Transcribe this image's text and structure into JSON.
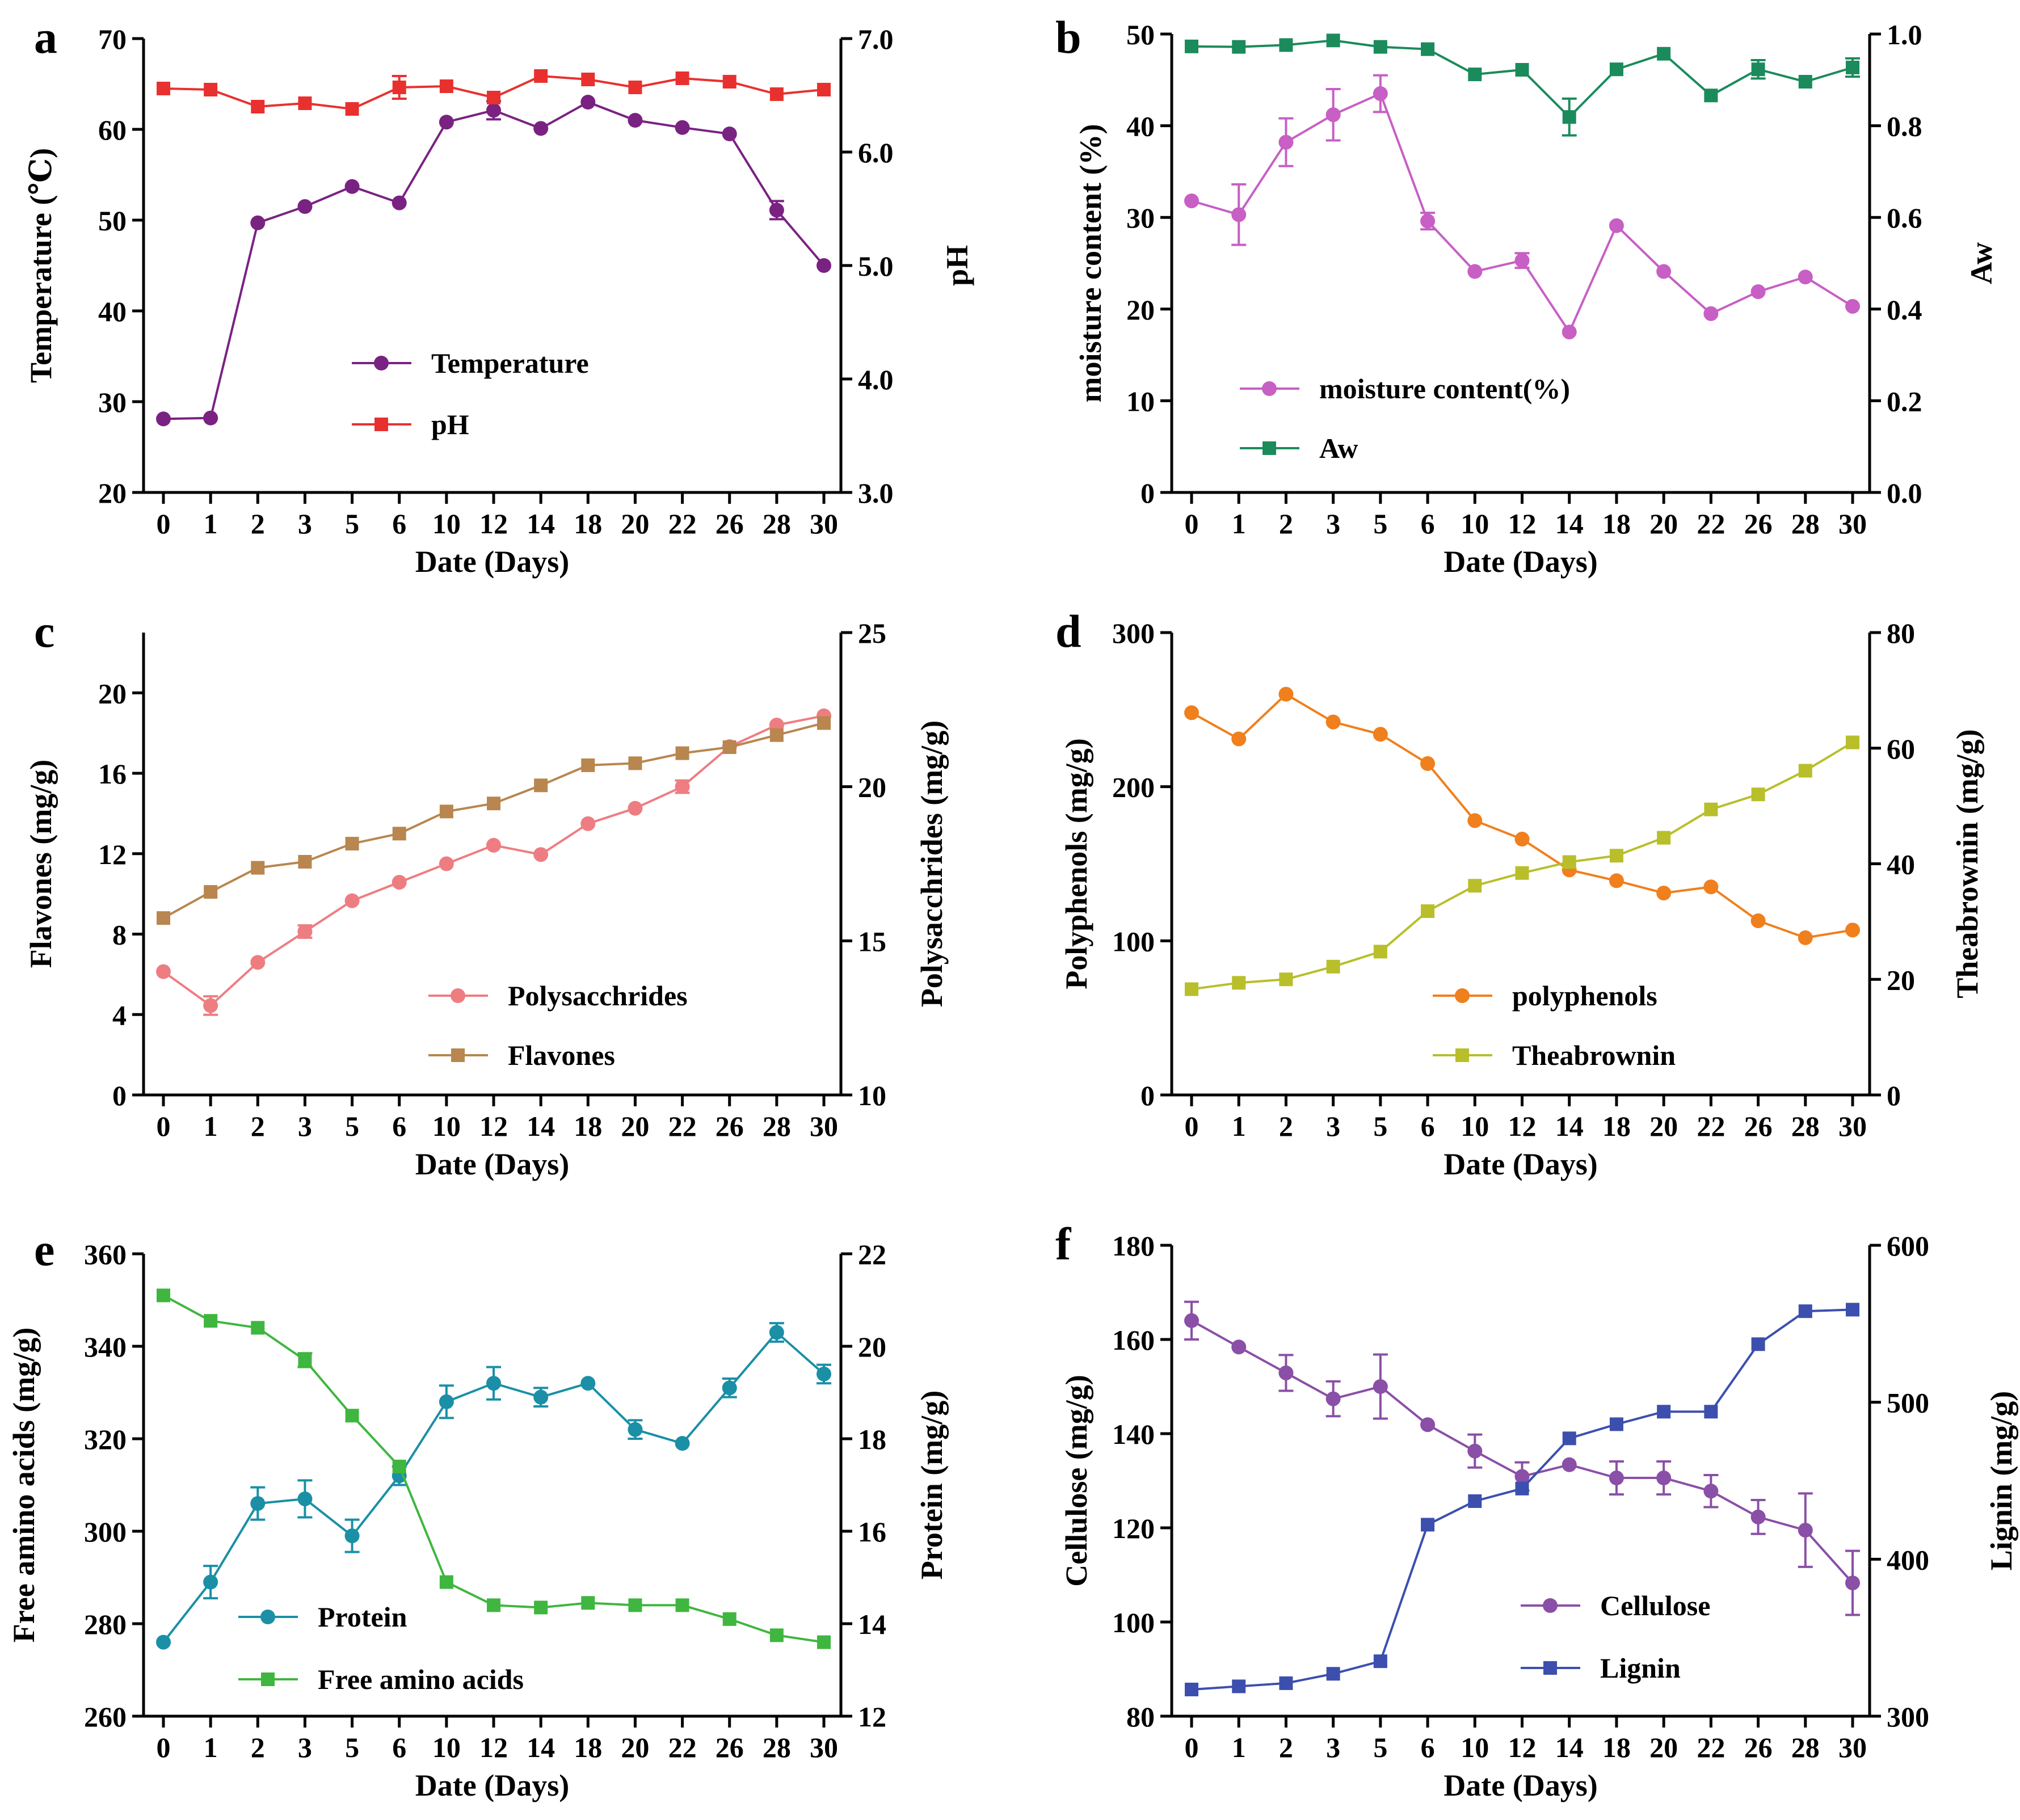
{
  "figure": {
    "xlabel": "Date (Days)",
    "days": [
      "0",
      "1",
      "2",
      "3",
      "5",
      "6",
      "10",
      "12",
      "14",
      "18",
      "20",
      "22",
      "26",
      "28",
      "30"
    ]
  },
  "chart_data": [
    {
      "panel": "a",
      "type": "line",
      "ylabel_left": "Temperature (℃)",
      "ylabel_right": "pH",
      "yleft_range": [
        20,
        70
      ],
      "yleft_ticks": [
        "20",
        "30",
        "40",
        "50",
        "60",
        "70"
      ],
      "yright_range": [
        3.0,
        7.0
      ],
      "yright_ticks": [
        "3.0",
        "4.0",
        "5.0",
        "6.0",
        "7.0"
      ],
      "series": [
        {
          "name": "Temperature",
          "axis": "left",
          "color": "#7a2282",
          "marker": "circle",
          "values": [
            28.1,
            28.2,
            49.7,
            51.5,
            53.7,
            51.9,
            60.8,
            62.1,
            60.1,
            63.0,
            61.0,
            60.2,
            59.5,
            51.1,
            45.0
          ],
          "errors": [
            0,
            0,
            0,
            0,
            0,
            0,
            0,
            1.0,
            0,
            0,
            0,
            0,
            0,
            1.0,
            0
          ]
        },
        {
          "name": "pH",
          "axis": "right",
          "color": "#e8312f",
          "marker": "square",
          "values": [
            6.56,
            6.55,
            6.4,
            6.43,
            6.38,
            6.57,
            6.58,
            6.48,
            6.67,
            6.64,
            6.57,
            6.65,
            6.62,
            6.51,
            6.55
          ],
          "errors": [
            0,
            0,
            0,
            0,
            0,
            0.1,
            0,
            0,
            0,
            0,
            0,
            0,
            0,
            0,
            0
          ]
        }
      ]
    },
    {
      "panel": "b",
      "type": "line",
      "ylabel_left": "moisture content (%)",
      "ylabel_right": "Aw",
      "yleft_range": [
        0,
        50
      ],
      "yleft_ticks": [
        "0",
        "10",
        "20",
        "30",
        "40",
        "50"
      ],
      "yright_range": [
        0.0,
        1.0
      ],
      "yright_ticks": [
        "0.0",
        "0.2",
        "0.4",
        "0.6",
        "0.8",
        "1.0"
      ],
      "series": [
        {
          "name": "moisture content(%)",
          "axis": "left",
          "color": "#c75fc4",
          "marker": "circle",
          "values": [
            31.8,
            30.3,
            38.2,
            41.2,
            43.5,
            29.6,
            24.1,
            25.3,
            17.5,
            29.1,
            24.1,
            19.5,
            21.9,
            23.5,
            20.3
          ],
          "errors": [
            0,
            3.3,
            2.6,
            2.8,
            2.0,
            0.9,
            0,
            0.8,
            0,
            0,
            0,
            0,
            0,
            0,
            0
          ]
        },
        {
          "name": "Aw",
          "axis": "right",
          "color": "#1b8b5c",
          "marker": "square",
          "values": [
            0.973,
            0.972,
            0.976,
            0.986,
            0.972,
            0.967,
            0.912,
            0.922,
            0.819,
            0.923,
            0.957,
            0.866,
            0.923,
            0.896,
            0.927
          ],
          "errors": [
            0,
            0,
            0,
            0,
            0,
            0,
            0,
            0,
            0.04,
            0,
            0,
            0,
            0.02,
            0,
            0.02
          ]
        }
      ]
    },
    {
      "panel": "c",
      "type": "line",
      "ylabel_left": "Flavones (mg/g)",
      "ylabel_right": "Polysacchrides (mg/g)",
      "yleft_range": [
        0,
        23
      ],
      "yleft_ticks": [
        "0",
        "4",
        "8",
        "12",
        "16",
        "20"
      ],
      "yright_range": [
        10,
        25
      ],
      "yright_ticks": [
        "10",
        "15",
        "20",
        "25"
      ],
      "series": [
        {
          "name": "Polysacchrides",
          "axis": "right",
          "color": "#ee7d82",
          "marker": "circle",
          "values": [
            14.0,
            12.9,
            14.3,
            15.3,
            16.3,
            16.9,
            17.5,
            18.1,
            17.8,
            18.8,
            19.3,
            20.0,
            21.3,
            22.0,
            22.3
          ],
          "errors": [
            0,
            0.3,
            0,
            0.2,
            0,
            0,
            0,
            0,
            0,
            0,
            0,
            0.2,
            0,
            0,
            0
          ]
        },
        {
          "name": "Flavones",
          "axis": "left",
          "color": "#b8864e",
          "marker": "square",
          "values": [
            8.8,
            10.1,
            11.3,
            11.6,
            12.5,
            13.0,
            14.1,
            14.5,
            15.4,
            16.4,
            16.5,
            17.0,
            17.3,
            17.9,
            18.5
          ],
          "errors": [
            0,
            0,
            0,
            0,
            0,
            0,
            0,
            0,
            0,
            0,
            0,
            0,
            0,
            0,
            0
          ]
        }
      ]
    },
    {
      "panel": "d",
      "type": "line",
      "ylabel_left": "Polyphenols (mg/g)",
      "ylabel_right": "Theabrownin (mg/g)",
      "yleft_range": [
        0,
        300
      ],
      "yleft_ticks": [
        "0",
        "100",
        "200",
        "300"
      ],
      "yright_range": [
        0,
        80
      ],
      "yright_ticks": [
        "0",
        "20",
        "40",
        "60",
        "80"
      ],
      "series": [
        {
          "name": "polyphenols",
          "axis": "left",
          "color": "#f07f1d",
          "marker": "circle",
          "values": [
            248,
            231,
            260,
            242,
            234,
            215,
            178,
            166,
            146,
            139,
            131,
            135,
            113,
            102,
            107
          ],
          "errors": [
            0,
            0,
            0,
            0,
            0,
            0,
            0,
            0,
            0,
            0,
            0,
            0,
            0,
            0,
            0
          ]
        },
        {
          "name": "Theabrownin",
          "axis": "right",
          "color": "#b8bf2a",
          "marker": "square",
          "values": [
            18.3,
            19.4,
            20.0,
            22.2,
            24.8,
            31.8,
            36.2,
            38.4,
            40.3,
            41.4,
            44.5,
            49.4,
            52.0,
            56.1,
            61.0
          ],
          "errors": [
            0,
            0,
            0,
            0,
            0,
            0,
            0,
            0,
            0,
            0,
            0,
            0,
            0,
            0,
            0
          ]
        }
      ]
    },
    {
      "panel": "e",
      "type": "line",
      "ylabel_left": "Free amino acids (mg/g)",
      "ylabel_right": "Protein (mg/g)",
      "yleft_range": [
        260,
        360
      ],
      "yleft_ticks": [
        "260",
        "280",
        "300",
        "320",
        "340",
        "360"
      ],
      "yright_range": [
        12,
        22
      ],
      "yright_ticks": [
        "12",
        "14",
        "16",
        "18",
        "20",
        "22"
      ],
      "series": [
        {
          "name": "Protein",
          "axis": "right",
          "color": "#1a8fa6",
          "marker": "circle",
          "values": [
            13.6,
            14.9,
            16.6,
            16.7,
            15.9,
            17.2,
            18.8,
            19.2,
            18.9,
            19.2,
            18.2,
            17.9,
            19.1,
            20.3,
            19.4
          ],
          "errors": [
            0,
            0.35,
            0.35,
            0.4,
            0.35,
            0.2,
            0.35,
            0.35,
            0.2,
            0,
            0.2,
            0,
            0.2,
            0.2,
            0.2
          ]
        },
        {
          "name": "Free amino acids",
          "axis": "left",
          "color": "#3fb63f",
          "marker": "square",
          "values": [
            351,
            345.5,
            344,
            337,
            325,
            314,
            289,
            284,
            283.5,
            284.5,
            284,
            284,
            281,
            277.5,
            276
          ],
          "errors": [
            0,
            0,
            0,
            1.5,
            0,
            0,
            0,
            0,
            0,
            0,
            0,
            0,
            0,
            0,
            0
          ]
        }
      ]
    },
    {
      "panel": "f",
      "type": "line",
      "ylabel_left": "Cellulose (mg/g)",
      "ylabel_right": "Lignin (mg/g)",
      "yleft_range": [
        80,
        180
      ],
      "yleft_ticks": [
        "80",
        "100",
        "120",
        "140",
        "160",
        "180"
      ],
      "yright_range": [
        300,
        600
      ],
      "yright_ticks": [
        "300",
        "400",
        "500",
        "600"
      ],
      "series": [
        {
          "name": "Cellulose",
          "axis": "left",
          "color": "#8a4fa6",
          "marker": "circle",
          "values": [
            164.0,
            158.4,
            152.9,
            147.4,
            150.0,
            141.9,
            136.3,
            130.9,
            133.4,
            130.6,
            130.6,
            127.8,
            122.3,
            119.5,
            108.3
          ],
          "errors": [
            4,
            0,
            3.8,
            3.7,
            6.8,
            0,
            3.5,
            3,
            0,
            3.5,
            3.5,
            3.4,
            3.6,
            7.8,
            6.8
          ]
        },
        {
          "name": "Lignin",
          "axis": "right",
          "color": "#3c4fae",
          "marker": "square",
          "values": [
            317,
            319,
            321,
            327,
            335,
            422,
            437,
            445,
            477,
            486,
            494,
            494,
            537,
            558,
            559
          ],
          "errors": [
            0,
            0,
            0,
            0,
            0,
            0,
            0,
            0,
            0,
            0,
            0,
            0,
            0,
            0,
            0
          ]
        }
      ]
    }
  ]
}
